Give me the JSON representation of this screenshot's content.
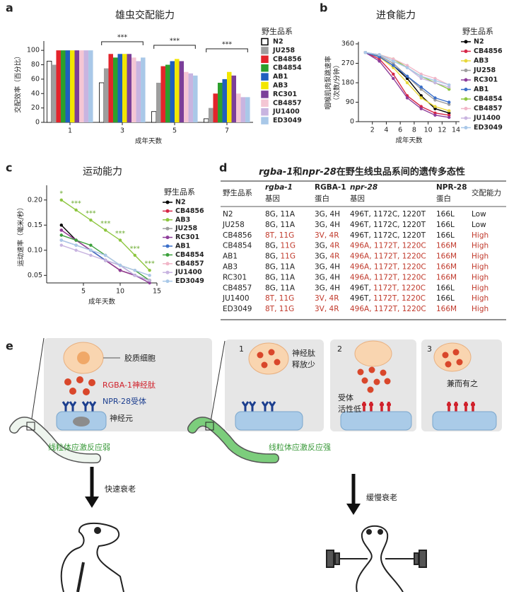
{
  "panel_labels": [
    "a",
    "b",
    "c",
    "d",
    "e"
  ],
  "chart_data": [
    {
      "type": "bar",
      "title": "雄虫交配能力",
      "x_label": "成年天数",
      "y_label": [
        "交配效率（百分比）"
      ],
      "legend_title": "野生品系",
      "categories": [
        "1",
        "3",
        "5",
        "7"
      ],
      "ylim": [
        0,
        110
      ],
      "yticks": [
        0,
        20,
        40,
        60,
        80,
        100
      ],
      "annotations": [
        "***",
        "***",
        "***"
      ],
      "series": [
        {
          "name": "N2",
          "color": "#ffffff",
          "values": [
            85,
            55,
            15,
            5
          ]
        },
        {
          "name": "JU258",
          "color": "#9e9e9e",
          "values": [
            80,
            75,
            55,
            20
          ]
        },
        {
          "name": "CB4856",
          "color": "#e3242b",
          "values": [
            100,
            95,
            78,
            40
          ]
        },
        {
          "name": "CB4854",
          "color": "#2ca02c",
          "values": [
            100,
            90,
            80,
            55
          ]
        },
        {
          "name": "AB1",
          "color": "#1f5fbf",
          "values": [
            100,
            95,
            85,
            60
          ]
        },
        {
          "name": "AB3",
          "color": "#f2e600",
          "values": [
            100,
            95,
            88,
            70
          ]
        },
        {
          "name": "RC301",
          "color": "#7b3f99",
          "values": [
            100,
            95,
            85,
            65
          ]
        },
        {
          "name": "CB4857",
          "color": "#f4c6d4",
          "values": [
            100,
            90,
            70,
            40
          ]
        },
        {
          "name": "JU1400",
          "color": "#c8b4e0",
          "values": [
            100,
            85,
            68,
            35
          ]
        },
        {
          "name": "ED3049",
          "color": "#a9c8e8",
          "values": [
            100,
            90,
            65,
            35
          ]
        }
      ]
    },
    {
      "type": "line",
      "title": "进食能力",
      "x_label": "成年天数",
      "y_label": [
        "咽喉肌肉泵跳速率",
        "（次数/分钟）"
      ],
      "legend_title": "野生品系",
      "x": [
        1,
        3,
        5,
        7,
        9,
        11,
        13
      ],
      "xlim": [
        0,
        14.5
      ],
      "xticks": [
        2,
        4,
        6,
        8,
        10,
        12,
        14
      ],
      "ylim": [
        0,
        360
      ],
      "yticks": [
        0,
        90,
        180,
        270,
        360
      ],
      "series": [
        {
          "name": "N2",
          "color": "#000000",
          "values": [
            320,
            300,
            260,
            200,
            120,
            60,
            40
          ]
        },
        {
          "name": "CB4856",
          "color": "#d62748",
          "values": [
            320,
            290,
            220,
            120,
            70,
            40,
            30
          ]
        },
        {
          "name": "AB3",
          "color": "#e8d83a",
          "values": [
            320,
            300,
            250,
            180,
            110,
            70,
            50
          ]
        },
        {
          "name": "JU258",
          "color": "#9e9e9e",
          "values": [
            320,
            305,
            270,
            210,
            150,
            100,
            80
          ]
        },
        {
          "name": "RC301",
          "color": "#8e3d9a",
          "values": [
            320,
            280,
            200,
            110,
            60,
            30,
            20
          ]
        },
        {
          "name": "AB1",
          "color": "#3b6fc9",
          "values": [
            320,
            300,
            260,
            210,
            160,
            110,
            90
          ]
        },
        {
          "name": "CB4854",
          "color": "#8dc63f",
          "values": [
            320,
            310,
            290,
            250,
            210,
            180,
            150
          ]
        },
        {
          "name": "CB4857",
          "color": "#f1b6c8",
          "values": [
            320,
            310,
            290,
            260,
            220,
            200,
            170
          ]
        },
        {
          "name": "JU1400",
          "color": "#c8b4e0",
          "values": [
            320,
            310,
            280,
            250,
            200,
            180,
            160
          ]
        },
        {
          "name": "ED3049",
          "color": "#a9c8e8",
          "values": [
            320,
            310,
            280,
            250,
            210,
            190,
            170
          ]
        }
      ]
    },
    {
      "type": "line",
      "title": "运动能力",
      "x_label": "成年天数",
      "y_label": [
        "运动速率（毫米/秒）"
      ],
      "legend_title": "野生品系",
      "x": [
        2,
        4,
        6,
        8,
        10,
        12,
        14
      ],
      "xlim": [
        0,
        15
      ],
      "xticks": [
        5,
        10,
        15
      ],
      "ylim": [
        0.035,
        0.225
      ],
      "yticks": [
        0.05,
        {
          "value": 0.1,
          "label": "0.10"
        },
        0.15,
        {
          "value": 0.2,
          "label": "0.20"
        }
      ],
      "annotations": [
        "*",
        "***",
        "***",
        "***",
        "***",
        "***",
        "***"
      ],
      "annotation_color": "#6aab2e",
      "series": [
        {
          "name": "N2",
          "color": "#000000",
          "values": [
            0.15,
            0.12,
            0.1,
            0.08,
            0.06,
            0.05,
            0.04
          ]
        },
        {
          "name": "CB4856",
          "color": "#d62748",
          "values": [
            0.14,
            0.12,
            0.1,
            0.08,
            0.06,
            0.05,
            0.04
          ]
        },
        {
          "name": "AB3",
          "color": "#8dc63f",
          "values": [
            0.2,
            0.18,
            0.16,
            0.14,
            0.12,
            0.09,
            0.06
          ]
        },
        {
          "name": "JU258",
          "color": "#9e9e9e",
          "values": [
            0.13,
            0.12,
            0.1,
            0.08,
            0.07,
            0.05,
            0.04
          ]
        },
        {
          "name": "RC301",
          "color": "#8e3d9a",
          "values": [
            0.14,
            0.12,
            0.1,
            0.08,
            0.06,
            0.05,
            0.035
          ]
        },
        {
          "name": "AB1",
          "color": "#3b6fc9",
          "values": [
            0.12,
            0.11,
            0.1,
            0.08,
            0.07,
            0.05,
            0.04
          ]
        },
        {
          "name": "CB4854",
          "color": "#3ca03c",
          "values": [
            0.13,
            0.12,
            0.11,
            0.09,
            0.07,
            0.06,
            0.04
          ]
        },
        {
          "name": "CB4857",
          "color": "#f1b6c8",
          "values": [
            0.12,
            0.11,
            0.1,
            0.09,
            0.07,
            0.06,
            0.05
          ]
        },
        {
          "name": "JU1400",
          "color": "#c8b4e0",
          "values": [
            0.11,
            0.1,
            0.09,
            0.08,
            0.07,
            0.05,
            0.04
          ]
        },
        {
          "name": "ED3049",
          "color": "#a9c8e8",
          "values": [
            0.12,
            0.11,
            0.1,
            0.09,
            0.07,
            0.06,
            0.05
          ]
        }
      ]
    }
  ],
  "table": {
    "title": [
      "rgba-1",
      "和",
      "npr-28",
      "在野生线虫品系间的遗传多态性"
    ],
    "headers": [
      [
        "野生品系"
      ],
      [
        "rgba-1",
        "基因"
      ],
      [
        "RGBA-1",
        "蛋白"
      ],
      [
        "npr-28",
        "基因"
      ],
      [
        "NPR-28",
        "蛋白"
      ],
      [
        "交配能力"
      ]
    ],
    "rows": [
      [
        "N2",
        [
          "8G, 11A"
        ],
        [
          "3G, 4H"
        ],
        [
          "496T, 1172C, 1220T"
        ],
        [
          "166L"
        ],
        [
          "Low"
        ]
      ],
      [
        "JU258",
        [
          "8G, 11A"
        ],
        [
          "3G, 4H"
        ],
        [
          "496T, 1172C, 1220T"
        ],
        [
          "166L"
        ],
        [
          "Low"
        ]
      ],
      [
        "CB4856",
        [
          {
            "text": "8T, 11G",
            "color": "#c0392b"
          }
        ],
        [
          {
            "text": "3V, 4R",
            "color": "#c0392b"
          }
        ],
        [
          "496T, 1172C, 1220T"
        ],
        [
          "166L"
        ],
        [
          {
            "text": "High",
            "color": "#c0392b"
          }
        ]
      ],
      [
        "CB4854",
        [
          "8G, ",
          {
            "text": "11G",
            "color": "#c0392b"
          }
        ],
        [
          "3G, ",
          {
            "text": "4R",
            "color": "#c0392b"
          }
        ],
        [
          {
            "text": "496A, 1172T, 1220C",
            "color": "#c0392b"
          }
        ],
        [
          {
            "text": "166M",
            "color": "#c0392b"
          }
        ],
        [
          {
            "text": "High",
            "color": "#c0392b"
          }
        ]
      ],
      [
        "AB1",
        [
          "8G, ",
          {
            "text": "11G",
            "color": "#c0392b"
          }
        ],
        [
          "3G, ",
          {
            "text": "4R",
            "color": "#c0392b"
          }
        ],
        [
          {
            "text": "496A, 1172T, 1220C",
            "color": "#c0392b"
          }
        ],
        [
          {
            "text": "166M",
            "color": "#c0392b"
          }
        ],
        [
          {
            "text": "High",
            "color": "#c0392b"
          }
        ]
      ],
      [
        "AB3",
        [
          "8G, 11A"
        ],
        [
          "3G, 4H"
        ],
        [
          {
            "text": "496A, 1172T, 1220C",
            "color": "#c0392b"
          }
        ],
        [
          {
            "text": "166M",
            "color": "#c0392b"
          }
        ],
        [
          {
            "text": "High",
            "color": "#c0392b"
          }
        ]
      ],
      [
        "RC301",
        [
          "8G, 11A"
        ],
        [
          "3G, 4H"
        ],
        [
          {
            "text": "496A, 1172T, 1220C",
            "color": "#c0392b"
          }
        ],
        [
          {
            "text": "166M",
            "color": "#c0392b"
          }
        ],
        [
          {
            "text": "High",
            "color": "#c0392b"
          }
        ]
      ],
      [
        "CB4857",
        [
          "8G, 11A"
        ],
        [
          "3G, 4H"
        ],
        [
          "496T, ",
          {
            "text": "1172T, 1220C",
            "color": "#c0392b"
          }
        ],
        [
          "166L"
        ],
        [
          {
            "text": "High",
            "color": "#c0392b"
          }
        ]
      ],
      [
        "JU1400",
        [
          {
            "text": "8T, 11G",
            "color": "#c0392b"
          }
        ],
        [
          {
            "text": "3V, 4R",
            "color": "#c0392b"
          }
        ],
        [
          "496T, ",
          {
            "text": "1172T, 1220C",
            "color": "#c0392b"
          }
        ],
        [
          "166L"
        ],
        [
          {
            "text": "High",
            "color": "#c0392b"
          }
        ]
      ],
      [
        "ED3049",
        [
          {
            "text": "8T, 11G",
            "color": "#c0392b"
          }
        ],
        [
          {
            "text": "3V, 4R",
            "color": "#c0392b"
          }
        ],
        [
          {
            "text": "496A, 1172T, 1220C",
            "color": "#c0392b"
          }
        ],
        [
          {
            "text": "166M",
            "color": "#c0392b"
          }
        ],
        [
          {
            "text": "High",
            "color": "#c0392b"
          }
        ]
      ]
    ]
  },
  "diagram": {
    "left": {
      "glia": "胶质细胞",
      "peptide": "RGBA-1神经肽",
      "receptor": "NPR-28受体",
      "neuron": "神经元",
      "response": "线粒体应激反应弱",
      "outcome": "快速衰老"
    },
    "right": {
      "scenarios": [
        {
          "number": "1",
          "label": [
            "神经肽",
            "释放少"
          ]
        },
        {
          "number": "2",
          "label": [
            "受体",
            "活性低"
          ]
        },
        {
          "number": "3",
          "label": [
            "兼而有之"
          ]
        }
      ],
      "response": "线粒体应激反应强",
      "outcome": "缓慢衰老"
    }
  }
}
